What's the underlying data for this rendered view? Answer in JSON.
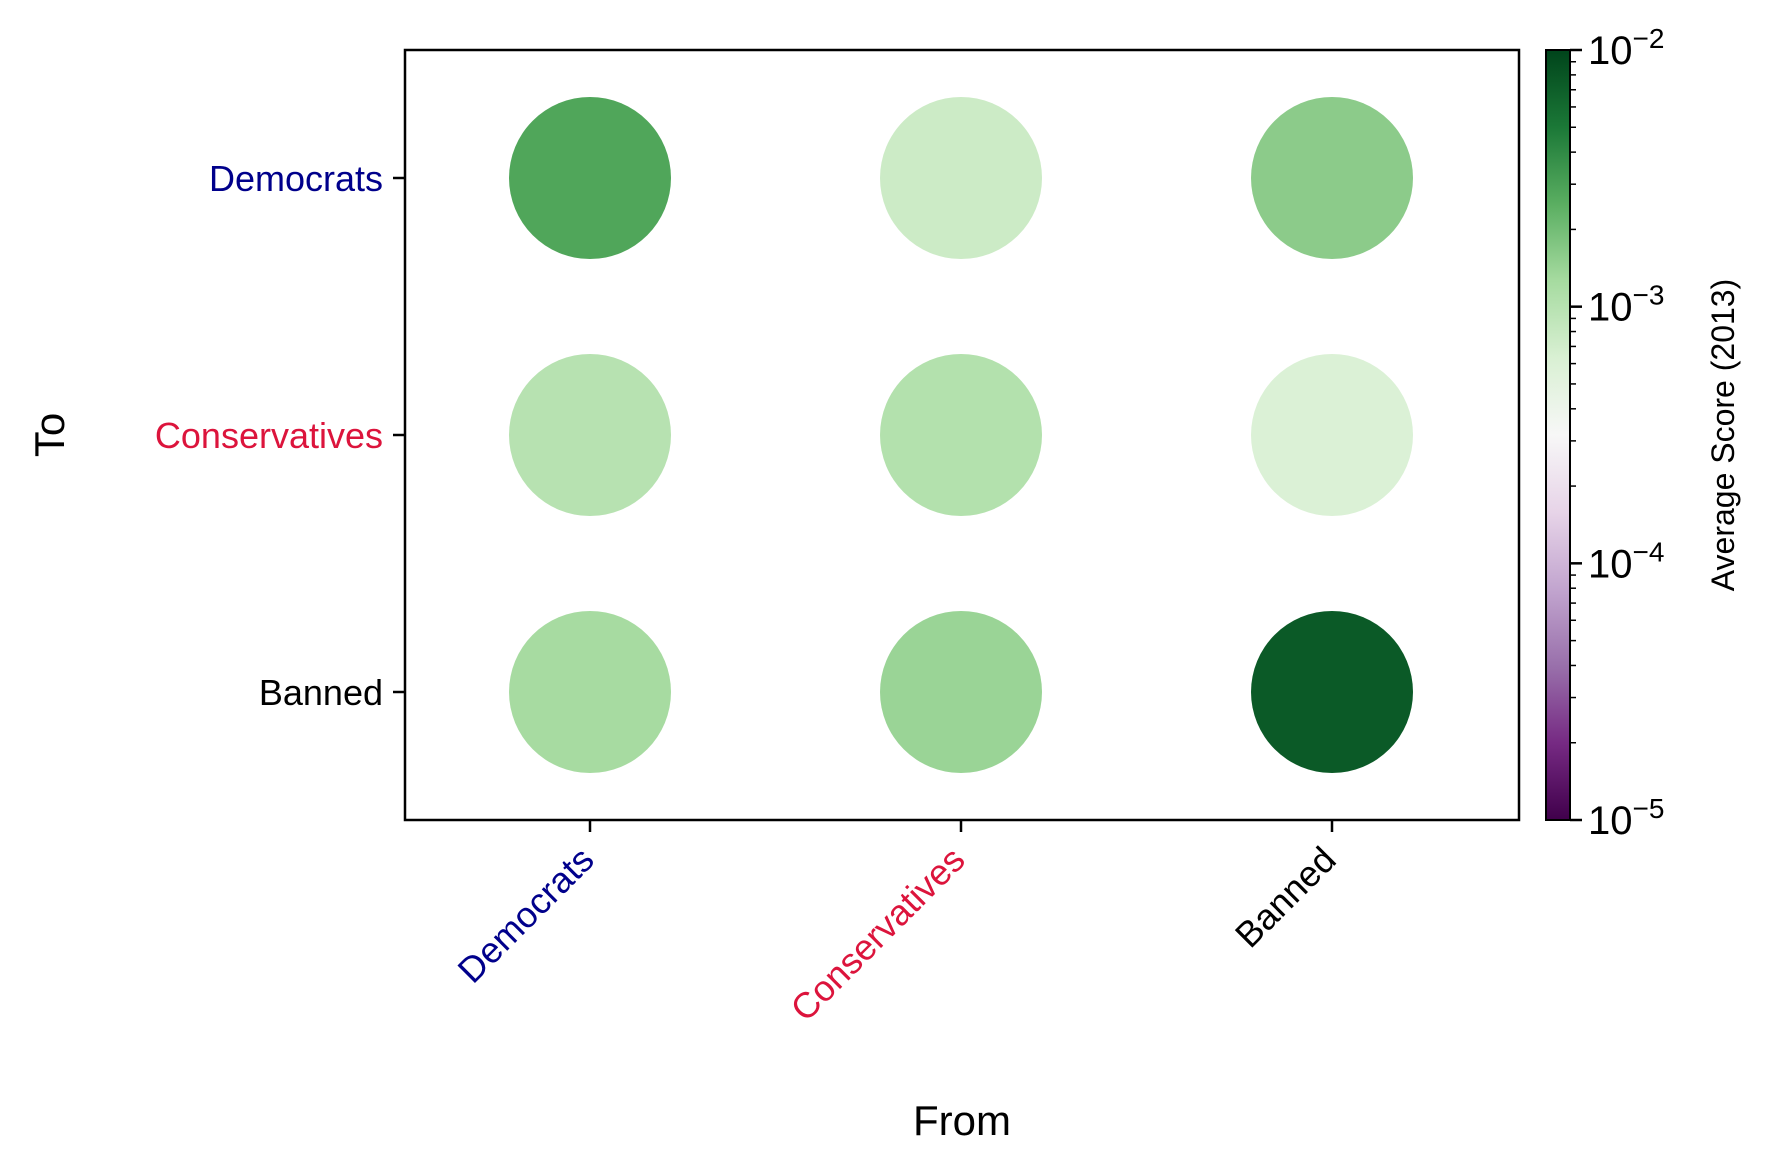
{
  "chart_data": {
    "type": "heatmap",
    "xlabel": "From",
    "ylabel": "To",
    "x_categories": [
      "Democrats",
      "Conservatives",
      "Banned"
    ],
    "y_categories": [
      "Democrats",
      "Conservatives",
      "Banned"
    ],
    "category_colors": {
      "Democrats": "#00008b",
      "Conservatives": "#dc143c",
      "Banned": "#000000"
    },
    "cells": [
      {
        "from": "Democrats",
        "to": "Democrats",
        "value": 0.0028
      },
      {
        "from": "Conservatives",
        "to": "Democrats",
        "value": 0.00075
      },
      {
        "from": "Banned",
        "to": "Democrats",
        "value": 0.0016
      },
      {
        "from": "Democrats",
        "to": "Conservatives",
        "value": 0.001
      },
      {
        "from": "Conservatives",
        "to": "Conservatives",
        "value": 0.00105
      },
      {
        "from": "Banned",
        "to": "Conservatives",
        "value": 0.0006
      },
      {
        "from": "Democrats",
        "to": "Banned",
        "value": 0.00125
      },
      {
        "from": "Conservatives",
        "to": "Banned",
        "value": 0.0014
      },
      {
        "from": "Banned",
        "to": "Banned",
        "value": 0.0075
      }
    ],
    "colorbar": {
      "label": "Average Score (2013)",
      "scale": "log",
      "range": [
        1e-05,
        0.01
      ],
      "ticks": [
        {
          "value": 1e-05,
          "label": "10",
          "exp": "−5"
        },
        {
          "value": 0.0001,
          "label": "10",
          "exp": "−4"
        },
        {
          "value": 0.001,
          "label": "10",
          "exp": "−3"
        },
        {
          "value": 0.01,
          "label": "10",
          "exp": "−2"
        }
      ],
      "colormap": "PRGn",
      "colormap_stops": [
        "#40004b",
        "#762a83",
        "#9970ab",
        "#c2a5cf",
        "#e7d4e8",
        "#f7f7f7",
        "#d9f0d3",
        "#a6dba0",
        "#5aae61",
        "#1b7837",
        "#00441b"
      ]
    },
    "grid": false
  }
}
